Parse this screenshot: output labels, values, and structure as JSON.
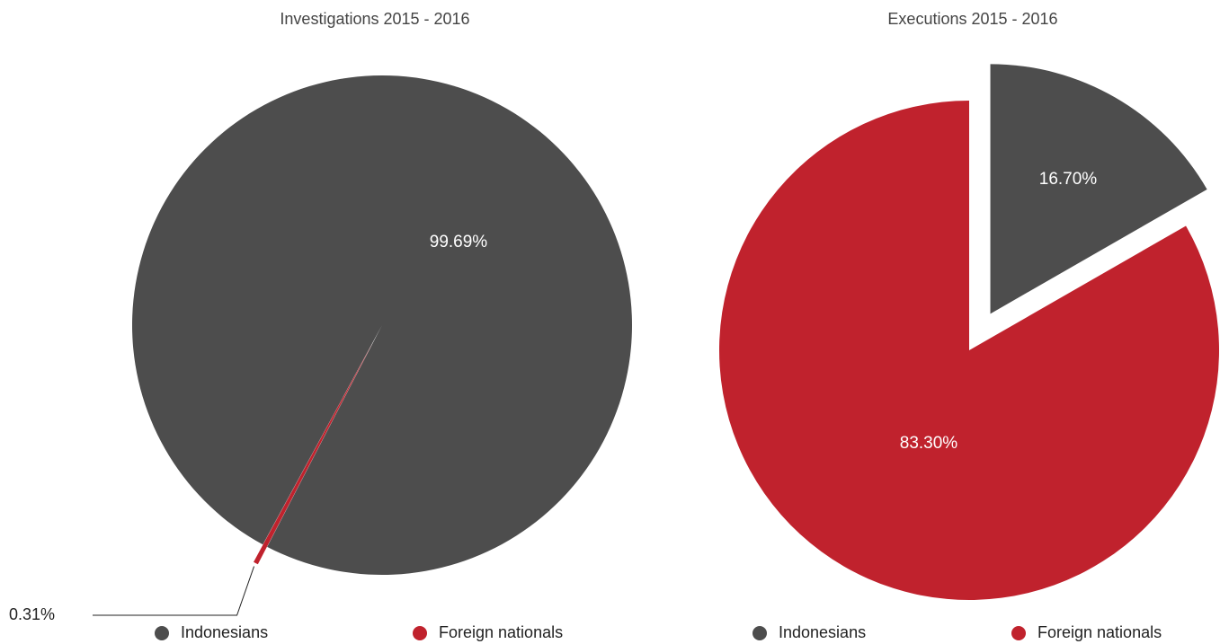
{
  "chart_data": [
    {
      "type": "pie",
      "title": "Investigations 2015 - 2016",
      "categories": [
        "Indonesians",
        "Foreign nationals"
      ],
      "values": [
        99.69,
        0.31
      ],
      "value_labels": [
        "99.69%",
        "0.31%"
      ],
      "colors": [
        "#4d4d4d",
        "#c0222d"
      ],
      "legend": "bottom"
    },
    {
      "type": "pie",
      "title": "Executions 2015 - 2016",
      "categories": [
        "Indonesians",
        "Foreign nationals"
      ],
      "values": [
        16.7,
        83.3
      ],
      "value_labels": [
        "16.70%",
        "83.30%"
      ],
      "colors": [
        "#4d4d4d",
        "#c0222d"
      ],
      "legend": "bottom"
    }
  ]
}
